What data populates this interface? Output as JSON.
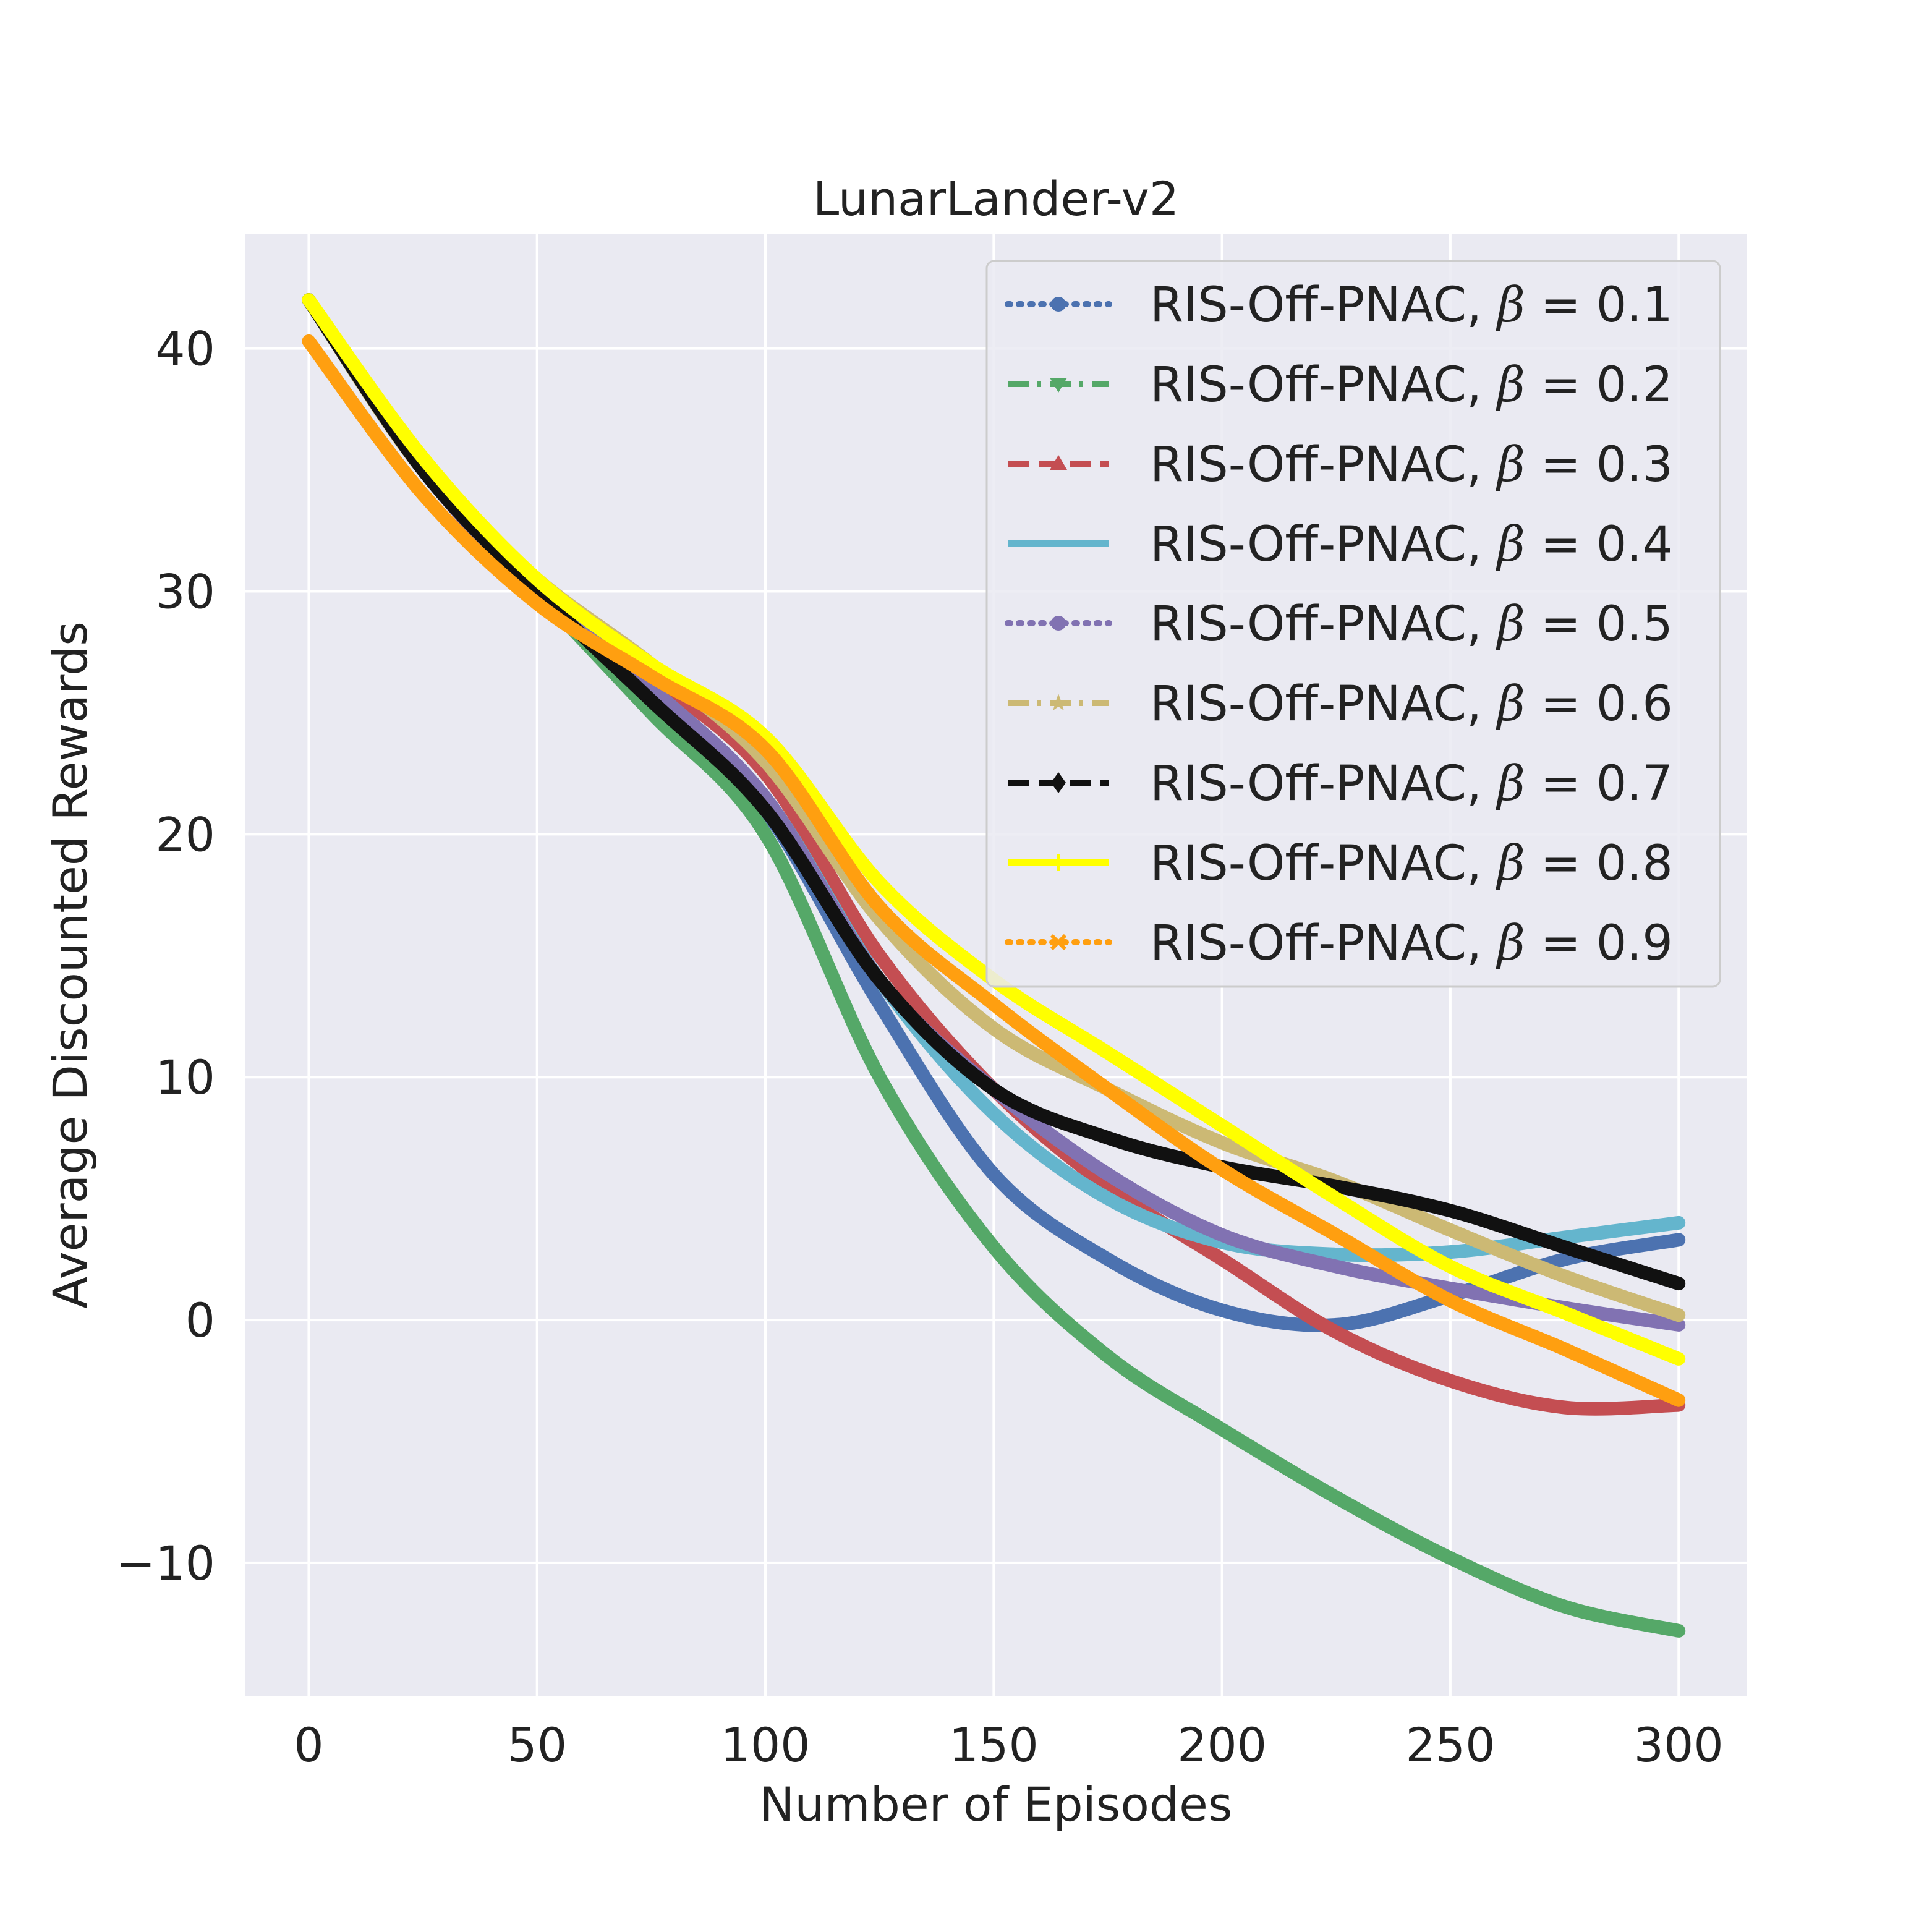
{
  "chart_data": {
    "type": "line",
    "title": "LunarLander-v2",
    "xlabel": "Number of Episodes",
    "ylabel": "Average Discounted Rewards",
    "xlim": [
      -14,
      315
    ],
    "ylim": [
      -15.5,
      44.7
    ],
    "xticks": [
      0,
      50,
      100,
      150,
      200,
      250,
      300
    ],
    "yticks": [
      -10,
      0,
      10,
      20,
      30,
      40
    ],
    "xtick_labels": [
      "0",
      "50",
      "100",
      "150",
      "200",
      "250",
      "300"
    ],
    "ytick_labels": [
      "−10",
      "0",
      "10",
      "20",
      "30",
      "40"
    ],
    "grid": true,
    "legend_position": "top-right",
    "x": [
      0,
      25,
      50,
      75,
      100,
      125,
      150,
      175,
      200,
      225,
      250,
      275,
      300
    ],
    "series": [
      {
        "name": "RIS-Off-PNAC, β = 0.1",
        "label_main": "RIS-Off-PNAC, ",
        "label_value": "0.1",
        "color": "#4c72b0",
        "dash": "dotted",
        "marker": "circle",
        "values": [
          42,
          35,
          30,
          26,
          21,
          13,
          6,
          2.5,
          0.4,
          -0.2,
          1.0,
          2.5,
          3.3
        ]
      },
      {
        "name": "RIS-Off-PNAC, β = 0.2",
        "label_main": "RIS-Off-PNAC, ",
        "label_value": "0.2",
        "color": "#55a868",
        "dash": "dashdot",
        "marker": "triangle_down",
        "values": [
          42,
          35,
          30,
          25,
          20,
          10,
          3,
          -1.5,
          -4.5,
          -7.3,
          -9.8,
          -11.8,
          -12.8
        ]
      },
      {
        "name": "RIS-Off-PNAC, β = 0.3",
        "label_main": "RIS-Off-PNAC, ",
        "label_value": "0.3",
        "color": "#c44e52",
        "dash": "dashed",
        "marker": "triangle_up",
        "values": [
          42,
          35,
          30,
          26.5,
          22.5,
          15,
          9.5,
          5.5,
          2.5,
          -0.5,
          -2.5,
          -3.6,
          -3.5
        ]
      },
      {
        "name": "RIS-Off-PNAC, β = 0.4",
        "label_main": "RIS-Off-PNAC, ",
        "label_value": "0.4",
        "color": "#64b5cd",
        "dash": "solid",
        "marker": "none",
        "values": [
          42,
          35,
          30,
          26,
          21.5,
          14,
          8.5,
          5,
          3.2,
          2.7,
          2.8,
          3.4,
          4.0
        ]
      },
      {
        "name": "RIS-Off-PNAC, β = 0.5",
        "label_main": "RIS-Off-PNAC, ",
        "label_value": "0.5",
        "color": "#8172b2",
        "dash": "dotted",
        "marker": "circle",
        "values": [
          42,
          35,
          30,
          26,
          21.5,
          14,
          9.5,
          6,
          3.5,
          2.2,
          1.3,
          0.5,
          -0.2
        ]
      },
      {
        "name": "RIS-Off-PNAC, β = 0.6",
        "label_main": "RIS-Off-PNAC, ",
        "label_value": "0.6",
        "color": "#ccb974",
        "dash": "dashdot",
        "marker": "star",
        "values": [
          42,
          35,
          30.5,
          27,
          23,
          16.5,
          12,
          9.5,
          7.3,
          5.7,
          3.7,
          1.8,
          0.2
        ]
      },
      {
        "name": "RIS-Off-PNAC, β = 0.7",
        "label_main": "RIS-Off-PNAC, ",
        "label_value": "0.7",
        "color": "#111111",
        "dash": "dashed",
        "marker": "diamond",
        "values": [
          42,
          35,
          30,
          25.5,
          21,
          14,
          9.5,
          7.5,
          6.3,
          5.5,
          4.5,
          3.0,
          1.5
        ]
      },
      {
        "name": "RIS-Off-PNAC, β = 0.8",
        "label_main": "RIS-Off-PNAC, ",
        "label_value": "0.8",
        "color": "#ffff00",
        "dash": "solid",
        "marker": "tick",
        "values": [
          42,
          35.5,
          30.5,
          27,
          24,
          18,
          14,
          11,
          8,
          5,
          2.2,
          0.3,
          -1.6
        ]
      },
      {
        "name": "RIS-Off-PNAC, β = 0.9",
        "label_main": "RIS-Off-PNAC, ",
        "label_value": "0.9",
        "color": "#ff9f10",
        "dash": "dotted",
        "marker": "x",
        "values": [
          40.3,
          34,
          29.5,
          26.5,
          23.5,
          17,
          13,
          9.5,
          6.2,
          3.5,
          0.8,
          -1.2,
          -3.3
        ]
      }
    ]
  }
}
